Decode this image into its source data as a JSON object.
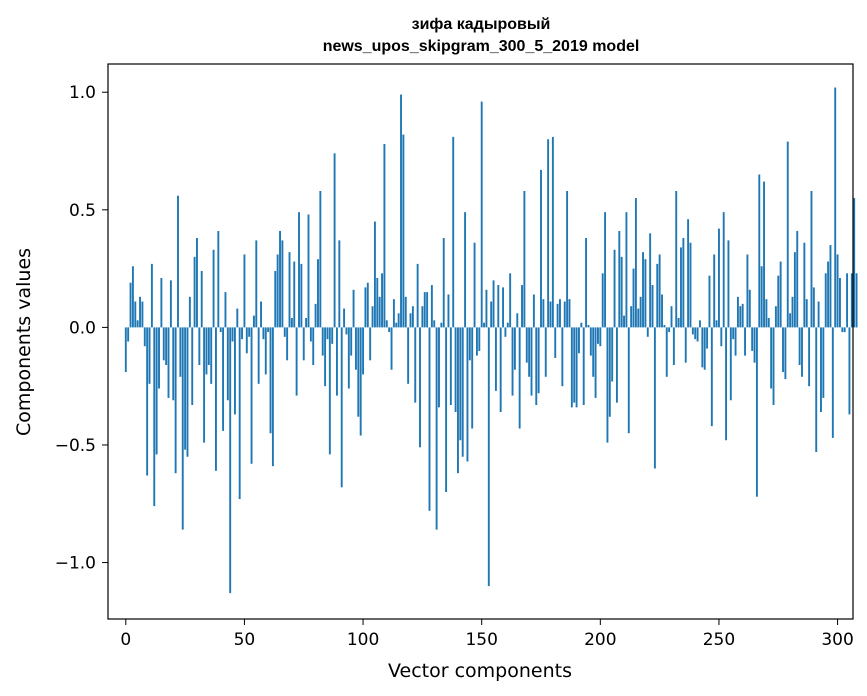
{
  "chart_data": {
    "type": "bar",
    "title_line_1": "зифа кадыровый",
    "title_line_2": "news_upos_skipgram_300_5_2019 model",
    "xlabel": "Vector components",
    "ylabel": "Components values",
    "xlim": [
      -7.5,
      306.5
    ],
    "ylim": [
      -1.24,
      1.12
    ],
    "xticks": [
      0,
      50,
      100,
      150,
      200,
      250,
      300
    ],
    "xtick_labels": [
      "0",
      "50",
      "100",
      "150",
      "200",
      "250",
      "300"
    ],
    "yticks": [
      -1.0,
      -0.5,
      0.0,
      0.5,
      1.0
    ],
    "ytick_labels": [
      "−1.0",
      "−0.5",
      "0.0",
      "0.5",
      "1.0"
    ],
    "grid": false,
    "color": "#1f77b4",
    "values": [
      -0.19,
      -0.06,
      0.19,
      0.26,
      0.11,
      0.03,
      0.13,
      0.11,
      -0.08,
      -0.63,
      -0.24,
      0.27,
      -0.76,
      -0.54,
      -0.26,
      0.21,
      -0.14,
      -0.16,
      -0.3,
      0.2,
      -0.31,
      -0.62,
      0.56,
      -0.21,
      -0.86,
      -0.52,
      -0.55,
      0.13,
      -0.33,
      0.3,
      0.38,
      -0.16,
      0.24,
      -0.49,
      -0.2,
      -0.16,
      -0.24,
      0.33,
      -0.61,
      0.41,
      -0.02,
      -0.44,
      0.15,
      -0.31,
      -1.13,
      -0.06,
      -0.37,
      0.08,
      -0.73,
      -0.05,
      0.31,
      -0.11,
      -0.04,
      -0.58,
      0.05,
      0.37,
      -0.24,
      0.11,
      -0.05,
      -0.2,
      -0.02,
      -0.45,
      -0.59,
      0.24,
      0.31,
      0.41,
      0.37,
      -0.04,
      -0.14,
      0.32,
      0.04,
      0.28,
      -0.29,
      0.49,
      0.27,
      -0.14,
      0.04,
      0.48,
      -0.06,
      -0.16,
      0.1,
      0.29,
      0.58,
      -0.12,
      -0.25,
      -0.05,
      -0.54,
      -0.07,
      0.74,
      -0.29,
      0.37,
      -0.68,
      0.08,
      -0.03,
      -0.26,
      -0.12,
      0.16,
      -0.18,
      -0.38,
      -0.46,
      -0.2,
      0.17,
      0.19,
      -0.14,
      0.09,
      0.45,
      0.21,
      0.13,
      0.23,
      0.78,
      0.03,
      -0.02,
      -0.18,
      0.12,
      0.02,
      0.06,
      0.99,
      0.82,
      0.13,
      -0.24,
      0.06,
      0.09,
      -0.32,
      0.27,
      -0.51,
      0.09,
      0.15,
      0.15,
      -0.78,
      0.18,
      0.03,
      -0.86,
      -0.34,
      0.02,
      0.38,
      -0.7,
      0.14,
      -0.33,
      0.81,
      -0.36,
      -0.62,
      -0.48,
      -0.55,
      0.49,
      -0.57,
      -0.14,
      -0.43,
      0.36,
      -0.12,
      -0.1,
      0.96,
      0.02,
      0.16,
      -1.1,
      0.11,
      0.2,
      -0.27,
      0.18,
      -0.36,
      0.17,
      -0.04,
      0.02,
      0.23,
      -0.29,
      -0.18,
      0.06,
      -0.43,
      0.18,
      0.58,
      -0.15,
      -0.21,
      -0.29,
      0.14,
      -0.33,
      -0.28,
      0.67,
      0.12,
      -0.21,
      0.8,
      0.11,
      0.81,
      -0.13,
      0.1,
      0.12,
      -0.25,
      0.11,
      0.58,
      0.12,
      -0.34,
      -0.32,
      -0.34,
      -0.11,
      0.02,
      -0.33,
      0.38,
      0.01,
      -0.12,
      -0.21,
      -0.3,
      -0.07,
      -0.08,
      0.23,
      0.49,
      -0.49,
      -0.38,
      -0.23,
      0.33,
      -0.32,
      0.41,
      0.3,
      0.05,
      0.49,
      -0.45,
      0.09,
      0.25,
      0.55,
      0.08,
      0.13,
      0.32,
      0.29,
      -0.04,
      0.4,
      0.18,
      -0.6,
      0.27,
      0.31,
      0.14,
      0.01,
      -0.21,
      -0.02,
      0.09,
      -0.16,
      0.58,
      0.04,
      0.34,
      0.38,
      -0.15,
      0.46,
      0.36,
      -0.03,
      -0.05,
      -0.06,
      0.03,
      -0.17,
      -0.18,
      -0.09,
      0.22,
      -0.42,
      0.31,
      0.03,
      0.42,
      -0.08,
      0.49,
      -0.48,
      0.37,
      -0.31,
      -0.05,
      -0.12,
      0.13,
      0.09,
      0.1,
      -0.12,
      0.31,
      0.16,
      -0.1,
      -0.15,
      -0.72,
      0.65,
      0.26,
      0.62,
      0.12,
      0.04,
      -0.26,
      -0.33,
      0.09,
      0.22,
      0.28,
      -0.19,
      -0.22,
      0.79,
      0.06,
      0.13,
      0.32,
      0.41,
      -0.16,
      -0.21,
      0.36,
      0.12,
      -0.25,
      0.58,
      0.17,
      -0.53,
      0.11,
      -0.36,
      -0.3,
      0.23,
      0.28,
      0.35,
      -0.47,
      1.02,
      0.31,
      0.21,
      -0.02,
      -0.02,
      0.23,
      -0.37,
      0.23,
      0.55,
      0.23
    ]
  }
}
